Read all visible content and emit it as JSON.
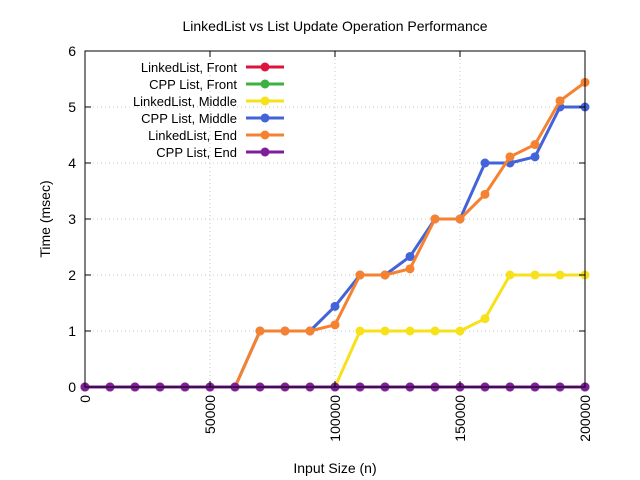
{
  "chart_data": {
    "type": "line",
    "title": "LinkedList vs List Update Operation Performance",
    "xlabel": "Input Size (n)",
    "ylabel": "Time (msec)",
    "xlim": [
      0,
      200000
    ],
    "ylim": [
      0,
      6
    ],
    "xticks": [
      0,
      50000,
      100000,
      150000,
      200000
    ],
    "yticks": [
      0,
      1,
      2,
      3,
      4,
      5,
      6
    ],
    "grid": true,
    "legend_position": "top-left",
    "x": [
      0,
      10000,
      20000,
      30000,
      40000,
      50000,
      60000,
      70000,
      80000,
      90000,
      100000,
      110000,
      120000,
      130000,
      140000,
      150000,
      160000,
      170000,
      180000,
      190000,
      200000
    ],
    "series": [
      {
        "name": "LinkedList, Front",
        "color": "#dc143c",
        "values": [
          0,
          0,
          0,
          0,
          0,
          0,
          0,
          0,
          0,
          0,
          0,
          0,
          0,
          0,
          0,
          0,
          0,
          0,
          0,
          0,
          0
        ]
      },
      {
        "name": "CPP List, Front",
        "color": "#3cb043",
        "values": [
          0,
          0,
          0,
          0,
          0,
          0,
          0,
          0,
          0,
          0,
          0,
          0,
          0,
          0,
          0,
          0,
          0,
          0,
          0,
          0,
          0
        ]
      },
      {
        "name": "LinkedList, Middle",
        "color": "#f7e11a",
        "values": [
          0,
          0,
          0,
          0,
          0,
          0,
          0,
          0,
          0,
          0,
          0,
          1,
          1,
          1,
          1,
          1,
          1.22,
          2,
          2,
          2,
          2
        ]
      },
      {
        "name": "CPP List, Middle",
        "color": "#4363d8",
        "values": [
          0,
          0,
          0,
          0,
          0,
          0,
          0,
          1,
          1,
          1,
          1.44,
          2,
          2,
          2.33,
          3,
          3,
          4,
          4,
          4.11,
          5,
          5
        ]
      },
      {
        "name": "LinkedList, End",
        "color": "#f58231",
        "values": [
          0,
          0,
          0,
          0,
          0,
          0,
          0,
          1,
          1,
          1,
          1.11,
          2,
          2,
          2.11,
          3,
          3,
          3.44,
          4.11,
          4.33,
          5.11,
          5.44
        ]
      },
      {
        "name": "CPP List, End",
        "color": "#7e1e9c",
        "values": [
          0,
          0,
          0,
          0,
          0,
          0,
          0,
          0,
          0,
          0,
          0,
          0,
          0,
          0,
          0,
          0,
          0,
          0,
          0,
          0,
          0
        ]
      }
    ]
  }
}
